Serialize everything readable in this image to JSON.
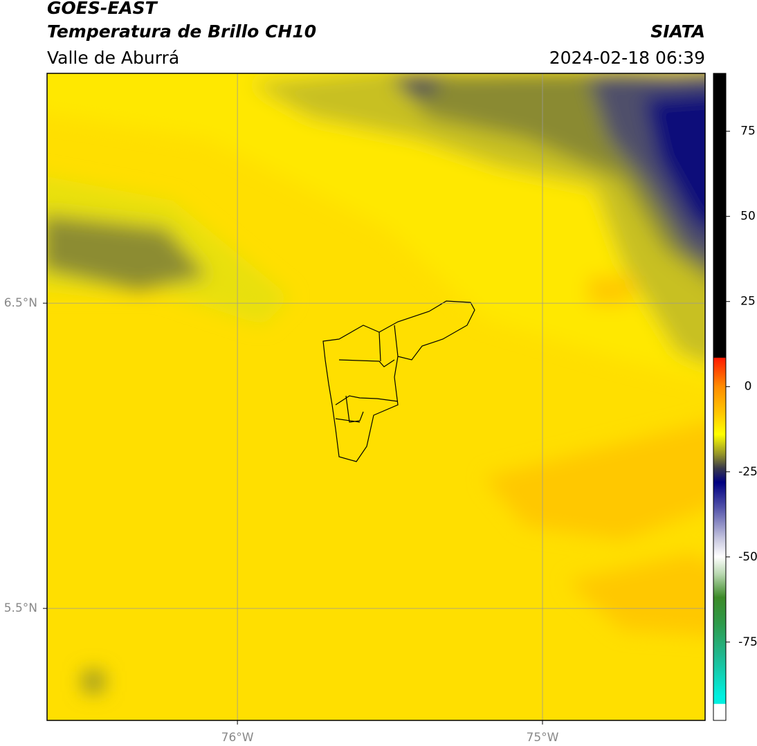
{
  "header": {
    "title": "GOES-EAST",
    "subtitle": "Temperatura de Brillo CH10",
    "region": "Valle de Aburrá",
    "source": "SIATA",
    "datetime": "2024-02-18 06:39"
  },
  "map": {
    "xlim": [
      -76.624,
      -74.467
    ],
    "ylim": [
      5.133,
      7.253
    ],
    "xticks": [
      {
        "value": -76,
        "label": "76°W"
      },
      {
        "value": -75,
        "label": "75°W"
      }
    ],
    "yticks": [
      {
        "value": 6.5,
        "label": "6.5°N"
      },
      {
        "value": 5.5,
        "label": "5.5°N"
      }
    ],
    "grid": true
  },
  "colorbar": {
    "lim": [
      -98,
      92
    ],
    "ticks": [
      75,
      50,
      25,
      0,
      -25,
      -50,
      -75
    ]
  }
}
